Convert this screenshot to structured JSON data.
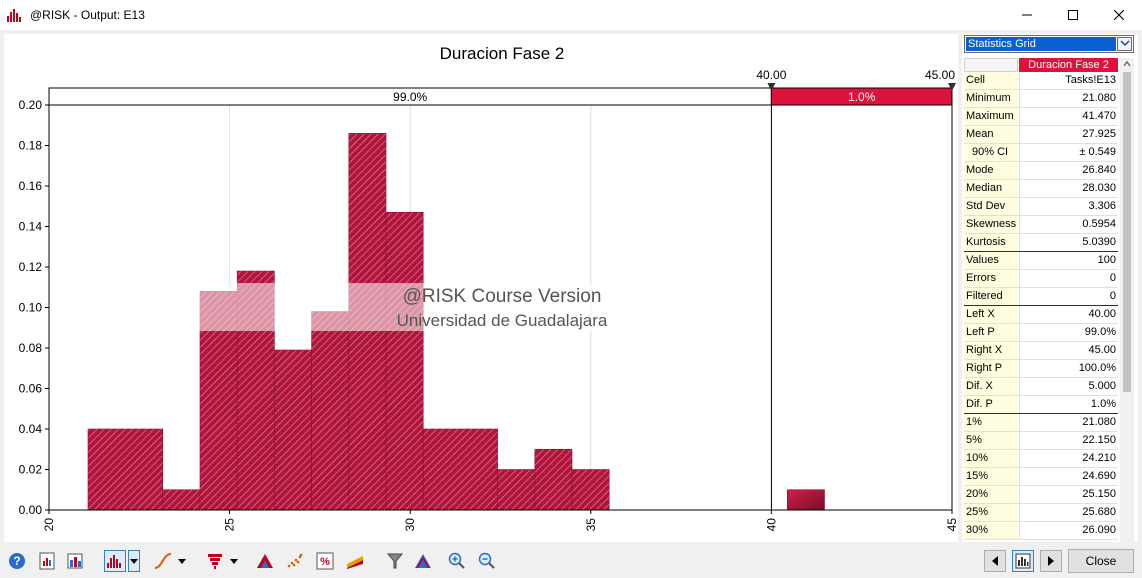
{
  "window": {
    "title": "@RISK - Output: E13"
  },
  "chart_data": {
    "type": "bar",
    "title": "Duracion Fase 2",
    "xlim": [
      20,
      45
    ],
    "ylim": [
      0,
      0.2
    ],
    "x_ticks": [
      "20",
      "25",
      "30",
      "35",
      "40",
      "45"
    ],
    "y_ticks": [
      "0.00",
      "0.02",
      "0.04",
      "0.06",
      "0.08",
      "0.10",
      "0.12",
      "0.14",
      "0.16",
      "0.18",
      "0.20"
    ],
    "bins": [
      {
        "start": 21.08,
        "end": 23.15,
        "value": 0.04
      },
      {
        "start": 23.15,
        "end": 24.18,
        "value": 0.01
      },
      {
        "start": 24.18,
        "end": 25.21,
        "value": 0.108
      },
      {
        "start": 25.21,
        "end": 26.24,
        "value": 0.118
      },
      {
        "start": 26.24,
        "end": 27.27,
        "value": 0.079
      },
      {
        "start": 27.27,
        "end": 28.3,
        "value": 0.098
      },
      {
        "start": 28.3,
        "end": 29.33,
        "value": 0.186
      },
      {
        "start": 29.33,
        "end": 30.36,
        "value": 0.147
      },
      {
        "start": 30.36,
        "end": 32.42,
        "value": 0.04
      },
      {
        "start": 32.42,
        "end": 33.45,
        "value": 0.02
      },
      {
        "start": 33.45,
        "end": 34.48,
        "value": 0.03
      },
      {
        "start": 34.48,
        "end": 35.51,
        "value": 0.02
      },
      {
        "start": 40.44,
        "end": 41.47,
        "value": 0.01
      }
    ],
    "delimiters": {
      "left_x": "40.00",
      "right_x": "45.00",
      "left_p": "99.0%",
      "right_p": "1.0%"
    },
    "watermark": {
      "line1": "@RISK Course Version",
      "line2": "Universidad de Guadalajara"
    },
    "colors": {
      "bar": "#b0153b",
      "bar_dark": "#8a0f2d",
      "band_right": "#dc143c"
    },
    "grid": true
  },
  "stats": {
    "selector": "Statistics Grid",
    "output_name": "Duracion Fase 2",
    "rows": [
      {
        "label": "Cell",
        "value": "Tasks!E13",
        "group_end": false,
        "indent": false
      },
      {
        "label": "Minimum",
        "value": "21.080",
        "group_end": false,
        "indent": false
      },
      {
        "label": "Maximum",
        "value": "41.470",
        "group_end": false,
        "indent": false
      },
      {
        "label": "Mean",
        "value": "27.925",
        "group_end": false,
        "indent": false
      },
      {
        "label": "90% CI",
        "value": "± 0.549",
        "group_end": false,
        "indent": true
      },
      {
        "label": "Mode",
        "value": "26.840",
        "group_end": false,
        "indent": false
      },
      {
        "label": "Median",
        "value": "28.030",
        "group_end": false,
        "indent": false
      },
      {
        "label": "Std Dev",
        "value": "3.306",
        "group_end": false,
        "indent": false
      },
      {
        "label": "Skewness",
        "value": "0.5954",
        "group_end": false,
        "indent": false
      },
      {
        "label": "Kurtosis",
        "value": "5.0390",
        "group_end": true,
        "indent": false
      },
      {
        "label": "Values",
        "value": "100",
        "group_end": false,
        "indent": false
      },
      {
        "label": "Errors",
        "value": "0",
        "group_end": false,
        "indent": false
      },
      {
        "label": "Filtered",
        "value": "0",
        "group_end": true,
        "indent": false
      },
      {
        "label": "Left X",
        "value": "40.00",
        "group_end": false,
        "indent": false
      },
      {
        "label": "Left P",
        "value": "99.0%",
        "group_end": false,
        "indent": false
      },
      {
        "label": "Right X",
        "value": "45.00",
        "group_end": false,
        "indent": false
      },
      {
        "label": "Right P",
        "value": "100.0%",
        "group_end": false,
        "indent": false
      },
      {
        "label": "Dif. X",
        "value": "5.000",
        "group_end": false,
        "indent": false
      },
      {
        "label": "Dif. P",
        "value": "1.0%",
        "group_end": true,
        "indent": false
      },
      {
        "label": "1%",
        "value": "21.080",
        "group_end": false,
        "indent": false
      },
      {
        "label": "5%",
        "value": "22.150",
        "group_end": false,
        "indent": false
      },
      {
        "label": "10%",
        "value": "24.210",
        "group_end": false,
        "indent": false
      },
      {
        "label": "15%",
        "value": "24.690",
        "group_end": false,
        "indent": false
      },
      {
        "label": "20%",
        "value": "25.150",
        "group_end": false,
        "indent": false
      },
      {
        "label": "25%",
        "value": "25.680",
        "group_end": false,
        "indent": false
      },
      {
        "label": "30%",
        "value": "26.090",
        "group_end": false,
        "indent": false
      }
    ]
  },
  "toolbar": {
    "close_label": "Close"
  }
}
